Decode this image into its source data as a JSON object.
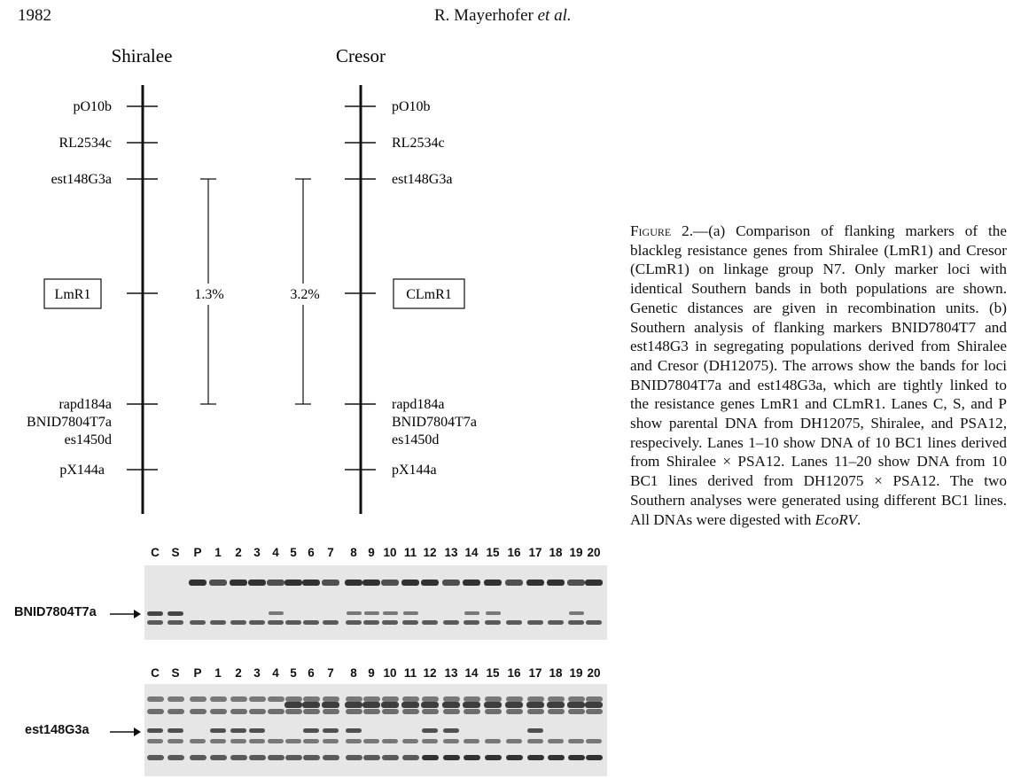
{
  "header": {
    "page_number": "1982",
    "author": "R. Mayerhofer",
    "author_suffix": "et al."
  },
  "linkage_map": {
    "populations": [
      "Shiralee",
      "Cresor"
    ],
    "left_markers": [
      "pO10b",
      "RL2534c",
      "est148G3a",
      "rapd184a",
      "BNID7804T7a",
      "es1450d",
      "pX144a"
    ],
    "right_markers": [
      "pO10b",
      "RL2534c",
      "est148G3a",
      "rapd184a",
      "BNID7804T7a",
      "es1450d",
      "pX144a"
    ],
    "left_gene": "LmR1",
    "right_gene": "CLmR1",
    "left_distance": "1.3%",
    "right_distance": "3.2%"
  },
  "gel_panels": [
    {
      "marker": "BNID7804T7a",
      "lanes": [
        "C",
        "S",
        "P",
        "1",
        "2",
        "3",
        "4",
        "5",
        "6",
        "7",
        "8",
        "9",
        "10",
        "11",
        "12",
        "13",
        "14",
        "15",
        "16",
        "17",
        "18",
        "19",
        "20"
      ]
    },
    {
      "marker": "est148G3a",
      "lanes": [
        "C",
        "S",
        "P",
        "1",
        "2",
        "3",
        "4",
        "5",
        "6",
        "7",
        "8",
        "9",
        "10",
        "11",
        "12",
        "13",
        "14",
        "15",
        "16",
        "17",
        "18",
        "19",
        "20"
      ]
    }
  ],
  "caption": {
    "figure_label": "Figure 2.",
    "text_part1": "—(a) Comparison of flanking markers of the blackleg resistance genes from Shiralee (LmR1) and Cresor (CLmR1) on linkage group N7. Only marker loci with identical Southern bands in both populations are shown. Genetic distances are given in recombination units. (b) Southern analysis of flanking markers BNID7804T7 and est148G3 in segregating populations derived from Shiralee and Cresor (DH12075). The arrows show the bands for loci BNID7804T7a and est148G3a, which are tightly linked to the resistance genes LmR1 and CLmR1. Lanes C, S, and P show parental DNA from DH12075, Shiralee, and PSA12, respecively. Lanes 1–10 show DNA of 10 BC1 lines derived from Shiralee × PSA12. Lanes 11–20 show DNA from 10 BC1 lines derived from DH12075 × PSA12. The two Southern analyses were generated using different BC1 lines. All DNAs were digested with ",
    "enzyme": "EcoRV",
    "text_end": "."
  },
  "colors": {
    "ink": "#111111",
    "gel_background": "#e6e6e6",
    "band_dark": "#2a2a2a"
  }
}
